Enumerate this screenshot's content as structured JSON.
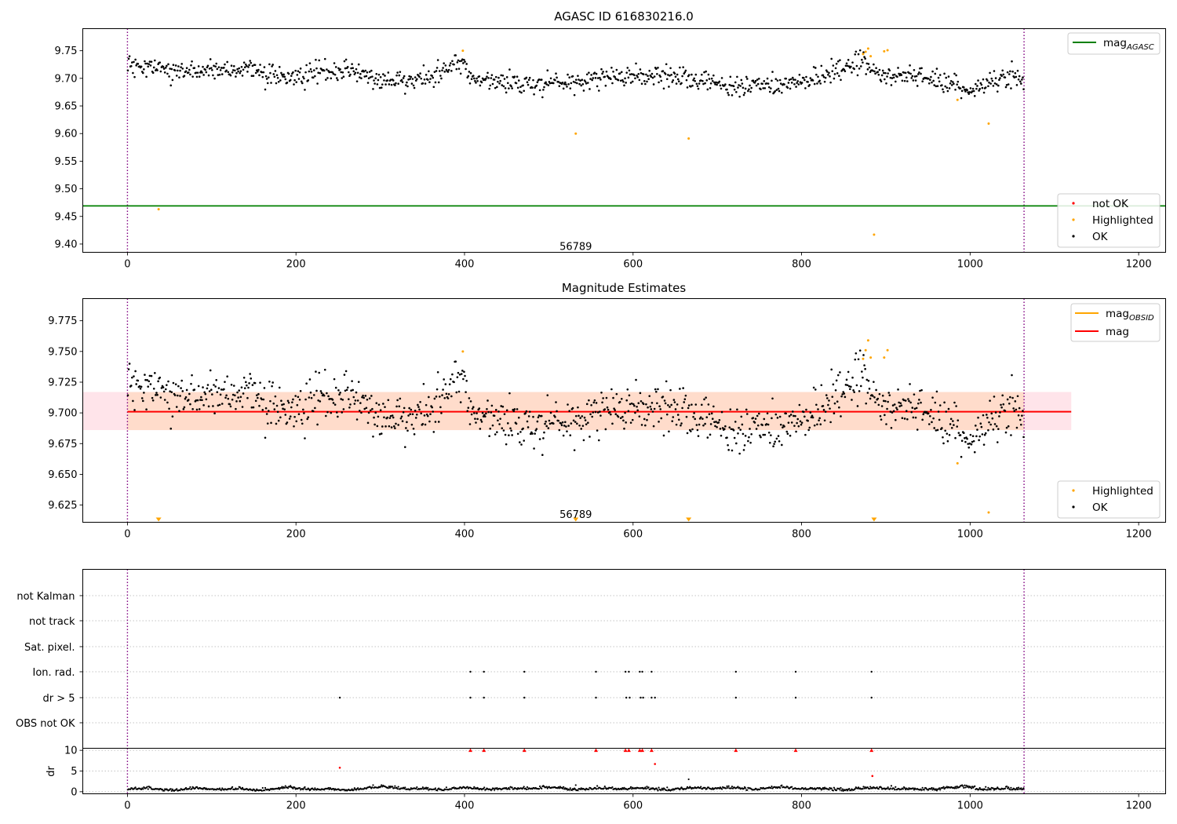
{
  "figure": {
    "colors": {
      "ok": "#000000",
      "highlighted": "#ffa500",
      "not_ok": "#ff0000",
      "mag_agasc": "#008000",
      "mag": "#ff0000",
      "mag_obsid": "#ffa500",
      "band_inner": "#ffdccb",
      "band_outer": "#ffe4ea",
      "vline": "#800080",
      "grid": "#b0b0b0"
    }
  },
  "chart_data": [
    {
      "id": "agasc",
      "type": "scatter",
      "title": "AGASC ID 616830216.0",
      "xlim": [
        -53,
        1232
      ],
      "ylim": [
        9.385,
        9.79
      ],
      "xticks": [
        0,
        200,
        400,
        600,
        800,
        1000,
        1200
      ],
      "xtick_labels": [
        "0",
        "200",
        "400",
        "600",
        "800",
        "1000",
        "1200"
      ],
      "yticks": [
        9.4,
        9.45,
        9.5,
        9.55,
        9.6,
        9.65,
        9.7,
        9.75
      ],
      "ytick_labels": [
        "9.40",
        "9.45",
        "9.50",
        "9.55",
        "9.60",
        "9.65",
        "9.70",
        "9.75"
      ],
      "vlines": [
        0,
        1064
      ],
      "hline": {
        "name": "mag_AGASC",
        "y": 9.469
      },
      "annotation": {
        "text": "56789",
        "x": 532,
        "y": 9.395
      },
      "ok_trend": [
        [
          0,
          9.722
        ],
        [
          20,
          9.716
        ],
        [
          60,
          9.712
        ],
        [
          100,
          9.715
        ],
        [
          150,
          9.716
        ],
        [
          200,
          9.7
        ],
        [
          260,
          9.716
        ],
        [
          300,
          9.695
        ],
        [
          350,
          9.7
        ],
        [
          400,
          9.732
        ],
        [
          405,
          9.7
        ],
        [
          480,
          9.69
        ],
        [
          560,
          9.7
        ],
        [
          640,
          9.705
        ],
        [
          720,
          9.685
        ],
        [
          820,
          9.695
        ],
        [
          870,
          9.735
        ],
        [
          880,
          9.725
        ],
        [
          900,
          9.705
        ],
        [
          960,
          9.698
        ],
        [
          1000,
          9.678
        ],
        [
          1040,
          9.705
        ],
        [
          1064,
          9.698
        ]
      ],
      "ok_noise": 0.011,
      "n_ok": 1064,
      "highlighted_points": [
        [
          37,
          9.463
        ],
        [
          398,
          9.75
        ],
        [
          532,
          9.6
        ],
        [
          666,
          9.591
        ],
        [
          873,
          9.744
        ],
        [
          876,
          9.748
        ],
        [
          879,
          9.754
        ],
        [
          882,
          9.74
        ],
        [
          886,
          9.417
        ],
        [
          898,
          9.749
        ],
        [
          902,
          9.751
        ],
        [
          985,
          9.661
        ],
        [
          1022,
          9.618
        ]
      ],
      "not_ok_points": [],
      "legend_upper": {
        "position": "upper-right",
        "entries": [
          {
            "label": "mag",
            "sub": "AGASC"
          }
        ]
      },
      "legend_lower": {
        "position": "lower-right",
        "entries": [
          "not OK",
          "Highlighted",
          "OK"
        ]
      }
    },
    {
      "id": "estimates",
      "type": "scatter",
      "title": "Magnitude Estimates",
      "xlim": [
        -53,
        1232
      ],
      "ylim": [
        9.611,
        9.793
      ],
      "xticks": [
        0,
        200,
        400,
        600,
        800,
        1000,
        1200
      ],
      "xtick_labels": [
        "0",
        "200",
        "400",
        "600",
        "800",
        "1000",
        "1200"
      ],
      "yticks": [
        9.625,
        9.65,
        9.675,
        9.7,
        9.725,
        9.75,
        9.775
      ],
      "ytick_labels": [
        "9.625",
        "9.650",
        "9.675",
        "9.700",
        "9.725",
        "9.750",
        "9.775"
      ],
      "vlines": [
        0,
        1064
      ],
      "mag_line": {
        "name": "mag",
        "y": 9.701,
        "x": [
          0,
          1120
        ]
      },
      "mag_obsid_line": {
        "name": "mag_OBSID",
        "y": 9.701,
        "x": [
          0,
          1064
        ]
      },
      "band_inner": {
        "x": [
          0,
          1064
        ],
        "y": [
          9.686,
          9.717
        ]
      },
      "band_outer": {
        "x": [
          -53,
          1120
        ],
        "y": [
          9.686,
          9.717
        ]
      },
      "annotation": {
        "text": "56789",
        "x": 532,
        "y": 9.617
      },
      "offscale_markers": [
        37,
        532,
        666,
        886
      ],
      "highlighted_points": [
        [
          398,
          9.75
        ],
        [
          873,
          9.744
        ],
        [
          876,
          9.751
        ],
        [
          879,
          9.759
        ],
        [
          882,
          9.745
        ],
        [
          898,
          9.745
        ],
        [
          902,
          9.751
        ],
        [
          985,
          9.659
        ],
        [
          1022,
          9.619
        ]
      ],
      "legend_upper": {
        "position": "upper-right",
        "entries": [
          {
            "label": "mag",
            "sub": "OBSID"
          },
          {
            "label": "mag",
            "sub": ""
          }
        ]
      },
      "legend_lower": {
        "position": "lower-right",
        "entries": [
          "Highlighted",
          "OK"
        ]
      }
    },
    {
      "id": "flags",
      "type": "scatter",
      "xlim": [
        -53,
        1232
      ],
      "categories": [
        "not Kalman",
        "not track",
        "Sat. pixel.",
        "Ion. rad.",
        "dr > 5",
        "OBS not OK"
      ],
      "vlines": [
        0,
        1064
      ],
      "ion_rad_x": [
        407,
        423,
        471,
        556,
        591,
        595,
        608,
        611,
        622,
        722,
        793,
        883
      ],
      "dr_gt5_x": [
        252,
        407,
        423,
        471,
        556,
        592,
        596,
        609,
        612,
        622,
        626,
        722,
        793,
        883
      ]
    },
    {
      "id": "dr",
      "type": "scatter",
      "ylabel": "dr",
      "xlim": [
        -53,
        1232
      ],
      "ylim": [
        -0.5,
        10.5
      ],
      "xticks": [
        0,
        200,
        400,
        600,
        800,
        1000,
        1200
      ],
      "xtick_labels": [
        "0",
        "200",
        "400",
        "600",
        "800",
        "1000",
        "1200"
      ],
      "yticks": [
        0,
        5,
        10
      ],
      "ytick_labels": [
        "0",
        "5",
        "10"
      ],
      "vlines": [
        0,
        1064
      ],
      "capped_x": [
        407,
        423,
        471,
        556,
        591,
        595,
        608,
        611,
        622,
        722,
        793,
        883
      ],
      "not_ok_points": [
        [
          252,
          5.8
        ],
        [
          626,
          6.7
        ],
        [
          884,
          3.8
        ]
      ],
      "extra_points": [
        [
          532,
          1.6
        ],
        [
          666,
          3.0
        ]
      ]
    }
  ]
}
